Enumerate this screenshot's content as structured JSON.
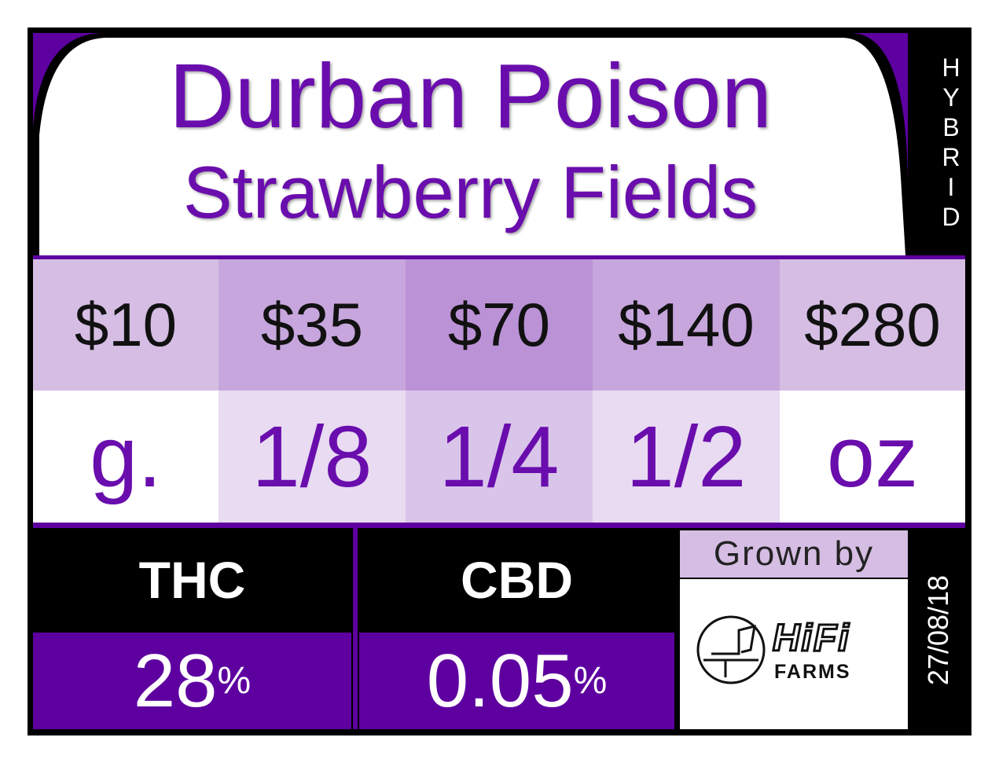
{
  "title": [
    "Durban Poison",
    "Strawberry Fields"
  ],
  "strain_type": "HYBRID",
  "prices": [
    "$10",
    "$35",
    "$70",
    "$140",
    "$280"
  ],
  "sizes": [
    "g.",
    "1/8",
    "1/4",
    "1/2",
    "oz"
  ],
  "thc": {
    "label": "THC",
    "value": "28",
    "unit": "%"
  },
  "cbd": {
    "label": "CBD",
    "value": "0.05",
    "unit": "%"
  },
  "grower": {
    "label": "Grown by",
    "name": "HiFi",
    "sub": "FARMS"
  },
  "date": "27/08/18"
}
